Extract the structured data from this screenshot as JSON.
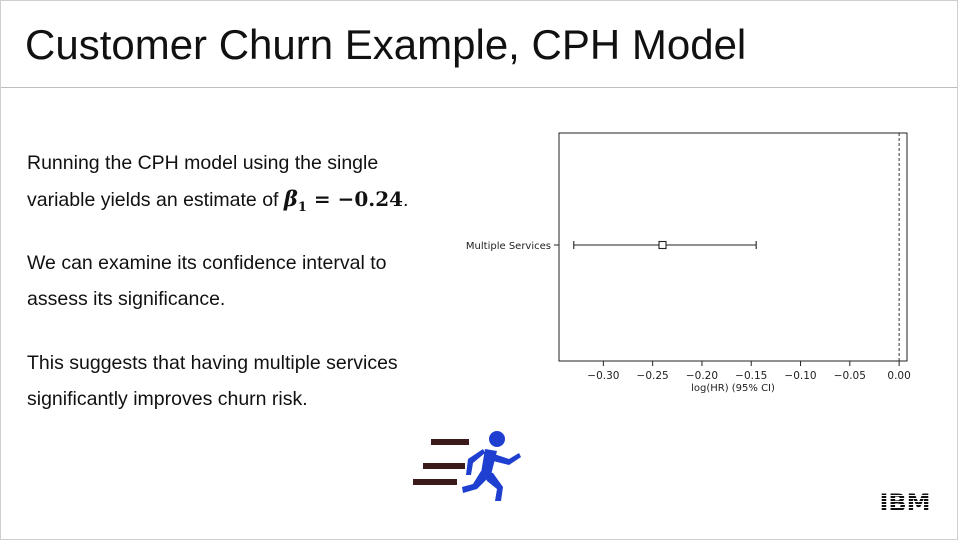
{
  "slide": {
    "title": "Customer Churn Example, CPH Model",
    "para1_line1": "Running the CPH model using the single",
    "para1_line2_prefix": "variable yields an estimate of ",
    "beta_symbol": "β",
    "beta_subscript": "1",
    "beta_equals": " = −0.24",
    "para1_suffix": ".",
    "para2_line1": "We can examine its confidence interval to",
    "para2_line2": "assess its significance.",
    "para3_line1": "This suggests that having multiple services",
    "para3_line2": "significantly improves churn risk.",
    "logo_text": "IBM",
    "runner_icon": "running-person-icon",
    "runner_color": "#1f3fd0",
    "speed_lines_color": "#3a1a1a"
  },
  "chart_data": {
    "type": "forest",
    "xlabel": "log(HR) (95% CI)",
    "xticks": [
      -0.3,
      -0.25,
      -0.2,
      -0.15,
      -0.1,
      -0.05,
      0.0
    ],
    "xtick_labels": [
      "−0.30",
      "−0.25",
      "−0.20",
      "−0.15",
      "−0.10",
      "−0.05",
      "0.00"
    ],
    "xlim": [
      -0.345,
      0.008
    ],
    "reference_line": 0.0,
    "covariates": [
      {
        "name": "Multiple Services",
        "coef": -0.24,
        "lower": -0.33,
        "upper": -0.145
      }
    ]
  }
}
